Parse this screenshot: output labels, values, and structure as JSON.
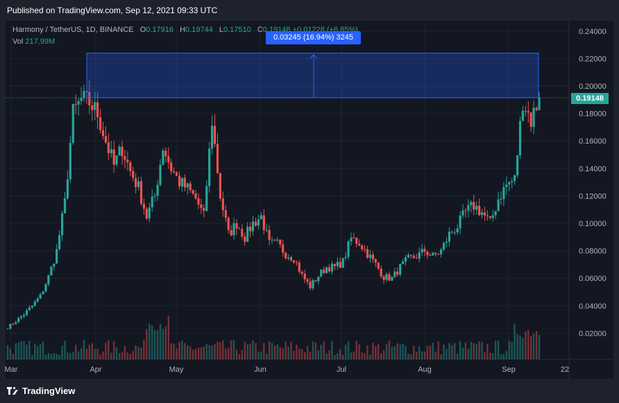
{
  "header": {
    "published": "Published on TradingView.com, Sep 12, 2021 09:33 UTC"
  },
  "legend": {
    "symbol": "Harmony / TetherUS, 1D, BINANCE",
    "open_label": "O",
    "open": "0.17916",
    "high_label": "H",
    "high": "0.19744",
    "low_label": "L",
    "low": "0.17510",
    "close_label": "C",
    "close": "0.19148",
    "change": "+0.01228 (+6.85%)",
    "vol_label": "Vol",
    "vol": "217.99M"
  },
  "measure": {
    "label": "0.03245 (16.94%) 3245",
    "from": 0.19148,
    "to": 0.22393
  },
  "footer": {
    "brand": "TradingView"
  },
  "colors": {
    "up": "#26a69a",
    "down": "#ef5350",
    "accent": "#2962ff",
    "background": "#131722"
  },
  "chart_data": {
    "type": "candlestick",
    "price_axis_ticks": [
      "0.24000",
      "0.22000",
      "0.20000",
      "0.18000",
      "0.16000",
      "0.14000",
      "0.12000",
      "0.10000",
      "0.08000",
      "0.06000",
      "0.04000",
      "0.02000"
    ],
    "time_axis_ticks": [
      "Mar",
      "Apr",
      "May",
      "Jun",
      "Jul",
      "Aug",
      "Sep",
      "22"
    ],
    "last_price": "0.19148",
    "ylim": [
      0.0,
      0.245
    ],
    "grid": true,
    "anchors": [
      [
        "Mar",
        0.0244
      ],
      [
        "Mar",
        0.0288
      ],
      [
        "Mar",
        0.0338
      ],
      [
        "Mar",
        0.04
      ],
      [
        "Mar",
        0.047
      ],
      [
        "Mar",
        0.061
      ],
      [
        "Mar",
        0.08
      ],
      [
        "Mar",
        0.115
      ],
      [
        "Mar",
        0.18
      ],
      [
        "Mar",
        0.19
      ],
      [
        "Apr",
        0.188
      ],
      [
        "Apr",
        0.18
      ],
      [
        "Apr",
        0.16
      ],
      [
        "Apr",
        0.142
      ],
      [
        "Apr",
        0.155
      ],
      [
        "Apr",
        0.138
      ],
      [
        "Apr",
        0.126
      ],
      [
        "Apr",
        0.105
      ],
      [
        "Apr",
        0.12
      ],
      [
        "Apr",
        0.156
      ],
      [
        "May",
        0.14
      ],
      [
        "May",
        0.13
      ],
      [
        "May",
        0.125
      ],
      [
        "May",
        0.118
      ],
      [
        "May",
        0.105
      ],
      [
        "May",
        0.175
      ],
      [
        "May",
        0.12
      ],
      [
        "May",
        0.092
      ],
      [
        "May",
        0.1
      ],
      [
        "May",
        0.09
      ],
      [
        "Jun",
        0.1
      ],
      [
        "Jun",
        0.105
      ],
      [
        "Jun",
        0.085
      ],
      [
        "Jun",
        0.085
      ],
      [
        "Jun",
        0.078
      ],
      [
        "Jun",
        0.075
      ],
      [
        "Jun",
        0.062
      ],
      [
        "Jun",
        0.054
      ],
      [
        "Jun",
        0.062
      ],
      [
        "Jun",
        0.068
      ],
      [
        "Jul",
        0.068
      ],
      [
        "Jul",
        0.072
      ],
      [
        "Jul",
        0.089
      ],
      [
        "Jul",
        0.086
      ],
      [
        "Jul",
        0.078
      ],
      [
        "Jul",
        0.07
      ],
      [
        "Jul",
        0.061
      ],
      [
        "Jul",
        0.06
      ],
      [
        "Jul",
        0.068
      ],
      [
        "Jul",
        0.074
      ],
      [
        "Aug",
        0.076
      ],
      [
        "Aug",
        0.08
      ],
      [
        "Aug",
        0.076
      ],
      [
        "Aug",
        0.08
      ],
      [
        "Aug",
        0.092
      ],
      [
        "Aug",
        0.098
      ],
      [
        "Aug",
        0.108
      ],
      [
        "Aug",
        0.113
      ],
      [
        "Aug",
        0.108
      ],
      [
        "Aug",
        0.1
      ],
      [
        "Sep",
        0.118
      ],
      [
        "Sep",
        0.128
      ],
      [
        "Sep",
        0.132
      ],
      [
        "Sep",
        0.19
      ],
      [
        "Sep",
        0.175
      ],
      [
        "Sep",
        0.19148
      ]
    ]
  }
}
